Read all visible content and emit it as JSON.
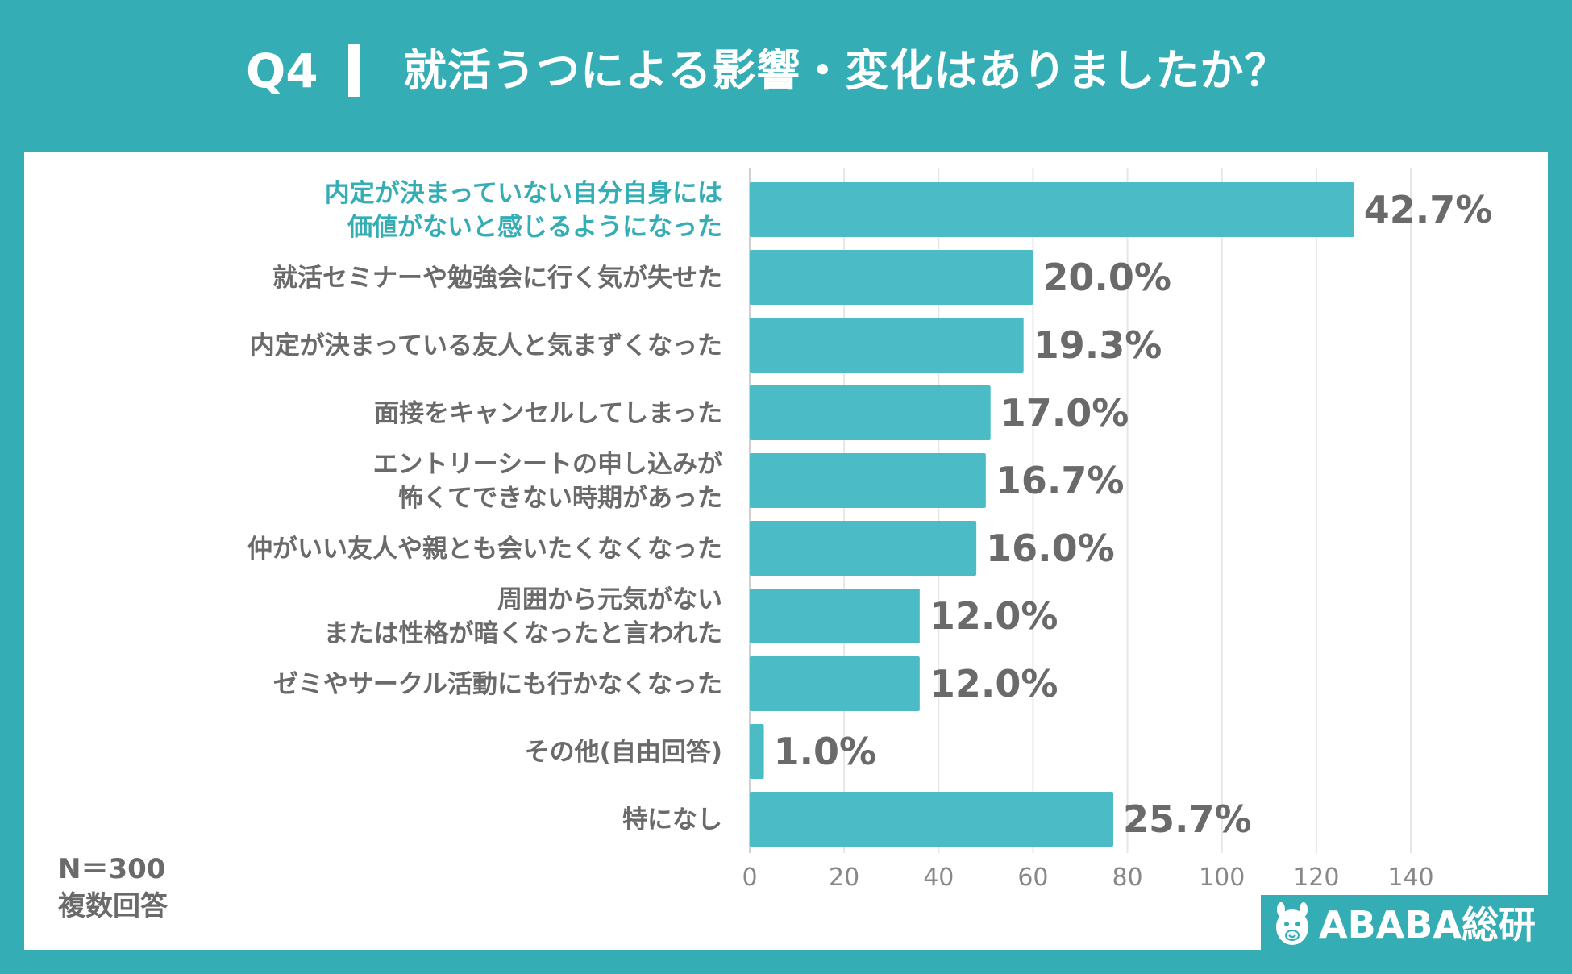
{
  "header": {
    "question_label": "Q4",
    "question_title": "就活うつによる影響・変化はありましたか？"
  },
  "footnote": {
    "sample_size": "N＝300",
    "note": "複数回答"
  },
  "brand": {
    "name": "ABABA総研",
    "icon": "alpaca-logo-icon"
  },
  "colors": {
    "background": "#35adb5",
    "bar": "#4bbcc6",
    "highlight_label": "#35adb5",
    "label": "#6a6a6a",
    "value_label": "#6a6a6a"
  },
  "chart_data": {
    "type": "bar",
    "orientation": "horizontal",
    "title": "就活うつによる影響・変化はありましたか？",
    "categories": [
      [
        "内定が決まっていない自分自身には",
        "価値がないと感じるようになった"
      ],
      [
        "就活セミナーや勉強会に行く気が失せた"
      ],
      [
        "内定が決まっている友人と気まずくなった"
      ],
      [
        "面接をキャンセルしてしまった"
      ],
      [
        "エントリーシートの申し込みが",
        "怖くてできない時期があった"
      ],
      [
        "仲がいい友人や親とも会いたくなくなった"
      ],
      [
        "周囲から元気がない",
        "または性格が暗くなったと言われた"
      ],
      [
        "ゼミやサークル活動にも行かなくなった"
      ],
      [
        "その他(自由回答)"
      ],
      [
        "特になし"
      ]
    ],
    "values": [
      128,
      60,
      58,
      51,
      50,
      48,
      36,
      36,
      3,
      77
    ],
    "value_labels": [
      "42.7%",
      "20.0%",
      "19.3%",
      "17.0%",
      "16.7%",
      "16.0%",
      "12.0%",
      "12.0%",
      "1.0%",
      "25.7%"
    ],
    "highlight_index": 0,
    "xlim": [
      0,
      140
    ],
    "x_ticks": [
      0,
      20,
      40,
      60,
      80,
      100,
      120,
      140
    ],
    "grid": true,
    "legend": "none"
  }
}
